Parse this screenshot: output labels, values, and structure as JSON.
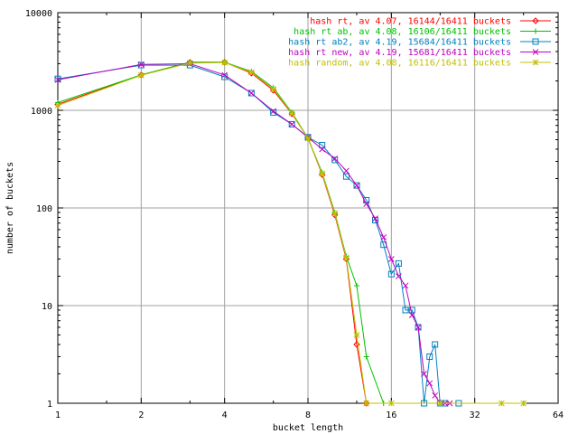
{
  "chart_data": {
    "type": "line",
    "title": "",
    "xlabel": "bucket length",
    "ylabel": "number of buckets",
    "x_scale": "log2",
    "y_scale": "log10",
    "xlim": [
      1,
      64
    ],
    "ylim": [
      1,
      10000
    ],
    "x_ticks": [
      1,
      2,
      4,
      8,
      16,
      32,
      64
    ],
    "x_tick_labels": [
      "1",
      "2",
      "4",
      "8",
      "16",
      "32",
      "64"
    ],
    "y_ticks": [
      1,
      10,
      100,
      1000,
      10000
    ],
    "y_tick_labels": [
      "1",
      "10",
      "100",
      "1000",
      "10000"
    ],
    "grid": true,
    "legend_position": "top-right",
    "series": [
      {
        "name": "hash rt, av 4.07, 16144/16411 buckets",
        "color": "#ff0000",
        "marker": "diamond",
        "x": [
          1,
          2,
          3,
          4,
          5,
          6,
          7,
          8,
          9,
          10,
          11,
          12,
          13
        ],
        "y": [
          1150,
          2300,
          3100,
          3100,
          2400,
          1600,
          920,
          520,
          220,
          85,
          30,
          4,
          1
        ]
      },
      {
        "name": "hash rt ab, av 4.08, 16106/16411 buckets",
        "color": "#00c000",
        "marker": "plus",
        "x": [
          1,
          2,
          3,
          4,
          5,
          6,
          7,
          8,
          9,
          10,
          11,
          12,
          13,
          15,
          24,
          48
        ],
        "y": [
          1200,
          2300,
          3100,
          3100,
          2500,
          1700,
          950,
          520,
          230,
          90,
          32,
          16,
          3,
          1,
          1,
          1
        ]
      },
      {
        "name": "hash rt ab2, av 4.19, 15684/16411 buckets",
        "color": "#0080c0",
        "marker": "square",
        "x": [
          1,
          2,
          3,
          4,
          5,
          6,
          7,
          8,
          9,
          10,
          11,
          12,
          13,
          14,
          15,
          16,
          17,
          18,
          19,
          20,
          21,
          22,
          23,
          24,
          25,
          28
        ],
        "y": [
          2100,
          2900,
          2900,
          2200,
          1500,
          950,
          720,
          530,
          440,
          310,
          210,
          170,
          120,
          75,
          42,
          21,
          27,
          9,
          9,
          6,
          1,
          3,
          4,
          1,
          1,
          1
        ]
      },
      {
        "name": "hash rt new, av 4.19, 15681/16411 buckets",
        "color": "#c000c0",
        "marker": "cross",
        "x": [
          1,
          2,
          3,
          4,
          5,
          6,
          7,
          8,
          9,
          10,
          11,
          12,
          13,
          14,
          15,
          16,
          17,
          18,
          19,
          20,
          21,
          22,
          23,
          24,
          25,
          26
        ],
        "y": [
          2050,
          2950,
          3000,
          2300,
          1500,
          980,
          720,
          530,
          400,
          320,
          240,
          170,
          110,
          78,
          50,
          30,
          20,
          16,
          8,
          6,
          2,
          1.6,
          1.2,
          1,
          1,
          1
        ]
      },
      {
        "name": "hash random, av 4.08, 16116/16411 buckets",
        "color": "#c0c000",
        "marker": "star",
        "x": [
          1,
          2,
          3,
          4,
          5,
          6,
          7,
          8,
          9,
          10,
          11,
          12,
          13,
          16,
          24,
          40,
          48
        ],
        "y": [
          1120,
          2280,
          3050,
          3080,
          2450,
          1650,
          930,
          515,
          225,
          88,
          31,
          5,
          1,
          1,
          1,
          1,
          1
        ]
      }
    ]
  }
}
